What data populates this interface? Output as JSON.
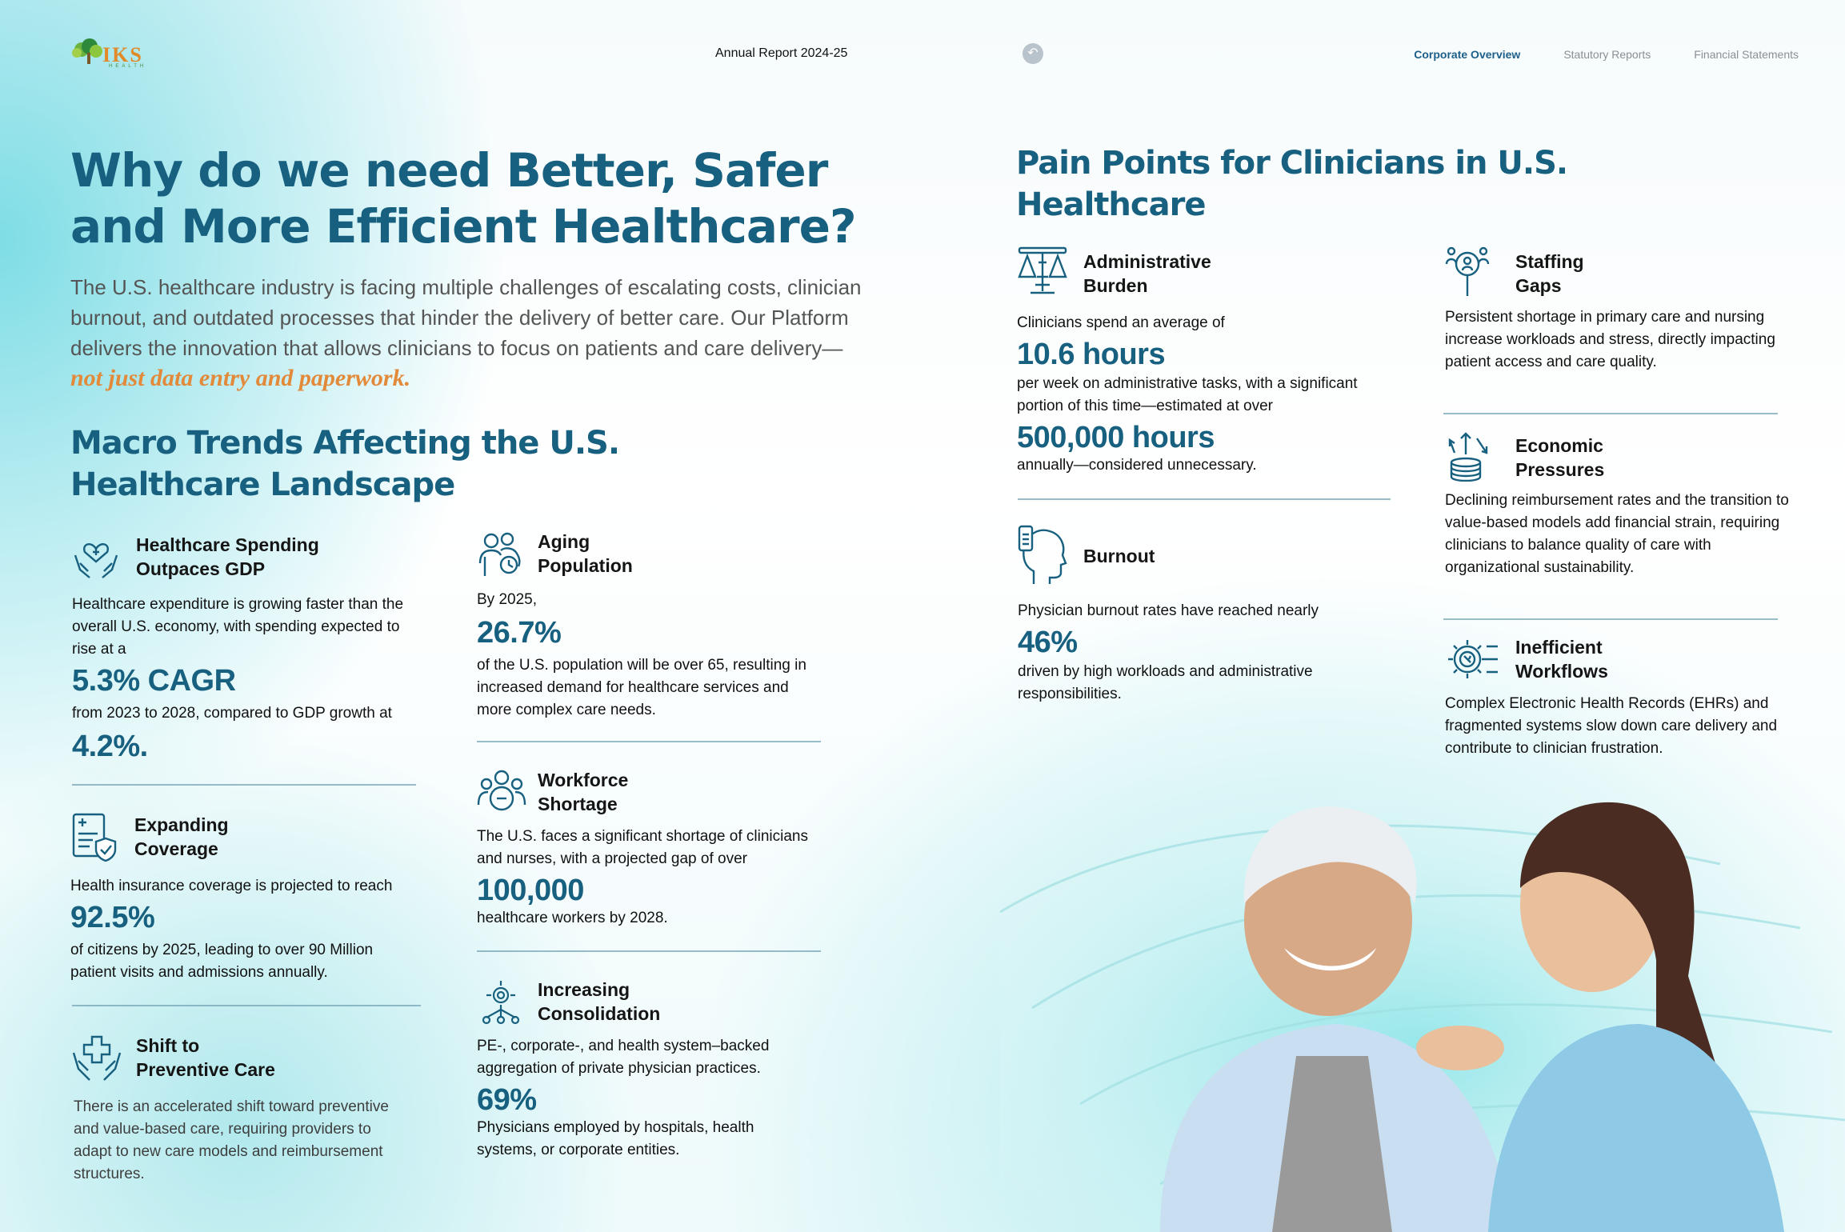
{
  "header": {
    "logo_text": "IKS",
    "logo_sub": "HEALTH",
    "report_title": "Annual Report 2024-25",
    "nav": [
      "Corporate Overview",
      "Statutory Reports",
      "Financial Statements"
    ],
    "active_nav": "Corporate Overview"
  },
  "main_title": "Why do we need Better, Safer and More Efficient Healthcare?",
  "intro": {
    "text": "The U.S. healthcare industry is facing multiple challenges of escalating costs, clinician burnout, and outdated processes that hinder the delivery of better care. Our Platform delivers the innovation that allows clinicians to focus on patients and care delivery—",
    "highlight": "not just data entry and paperwork."
  },
  "macro": {
    "title": "Macro Trends Affecting the U.S. Healthcare Landscape",
    "cards": {
      "spending": {
        "title_l1": "Healthcare Spending",
        "title_l2": "Outpaces GDP",
        "text1": "Healthcare expenditure is growing faster than the overall U.S. economy, with spending expected to rise at a",
        "stat1": "5.3% CAGR",
        "text2": "from 2023 to 2028, compared to GDP growth at",
        "stat2": "4.2%."
      },
      "coverage": {
        "title_l1": "Expanding",
        "title_l2": "Coverage",
        "text1": "Health insurance coverage is projected to reach",
        "stat": "92.5%",
        "text2": "of citizens by 2025, leading to over 90 Million patient visits and admissions annually."
      },
      "preventive": {
        "title_l1": "Shift to",
        "title_l2": "Preventive Care",
        "text": "There is an accelerated shift toward preventive and value-based care, requiring providers to adapt to new care models and reimbursement structures."
      },
      "aging": {
        "title_l1": "Aging",
        "title_l2": "Population",
        "text1": "By 2025,",
        "stat": "26.7%",
        "text2": "of the U.S. population will be over 65, resulting in increased demand for healthcare services and more complex care needs."
      },
      "workforce": {
        "title_l1": "Workforce",
        "title_l2": "Shortage",
        "text1": "The U.S. faces a significant shortage of clinicians and nurses, with a projected gap of over",
        "stat": "100,000",
        "text2": "healthcare workers by 2028."
      },
      "consolidation": {
        "title_l1": "Increasing",
        "title_l2": "Consolidation",
        "text1": "PE-, corporate-, and health system–backed aggregation of private physician practices.",
        "stat": "69%",
        "text2": "Physicians employed by hospitals, health systems, or corporate entities."
      }
    }
  },
  "pain": {
    "title": "Pain Points for Clinicians in U.S. Healthcare",
    "cards": {
      "admin": {
        "title_l1": "Administrative",
        "title_l2": "Burden",
        "text1": "Clinicians spend an average of",
        "stat1": "10.6 hours",
        "text2": "per week on administrative tasks, with a significant portion of this time—estimated at over",
        "stat2": "500,000 hours",
        "text3": "annually—considered unnecessary."
      },
      "burnout": {
        "title": "Burnout",
        "text1": "Physician burnout rates have reached nearly",
        "stat": "46%",
        "text2": "driven by high workloads and administrative responsibilities."
      },
      "staffing": {
        "title_l1": "Staffing",
        "title_l2": "Gaps",
        "text": "Persistent shortage in primary care and nursing increase workloads and stress, directly impacting patient access and care quality."
      },
      "economic": {
        "title_l1": "Economic",
        "title_l2": "Pressures",
        "text": "Declining reimbursement rates and the transition to value-based models add financial strain, requiring clinicians to balance quality of care with organizational sustainability."
      },
      "workflows": {
        "title_l1": "Inefficient",
        "title_l2": "Workflows",
        "text": "Complex Electronic Health Records (EHRs) and fragmented systems slow down care delivery and contribute to clinician frustration."
      }
    }
  },
  "colors": {
    "heading": "#17607f",
    "stat": "#17607f",
    "highlight": "#e2893a",
    "nav_active": "#1d5f8a"
  }
}
